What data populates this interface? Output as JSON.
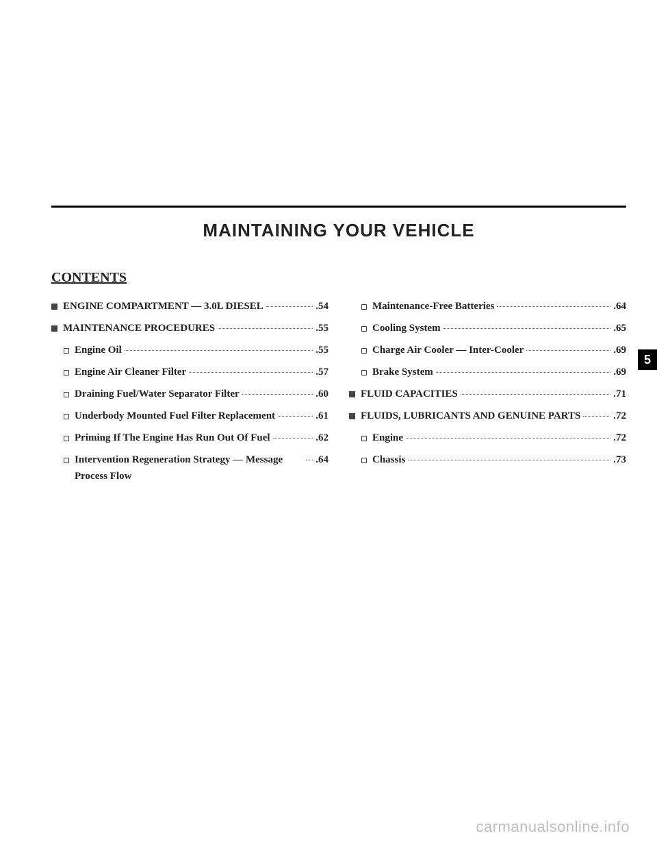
{
  "chapter_title": "MAINTAINING YOUR VEHICLE",
  "contents_heading": "CONTENTS",
  "section_number": "5",
  "watermark": "carmanualsonline.info",
  "toc": {
    "left": [
      {
        "level": 1,
        "label": "ENGINE COMPARTMENT — 3.0L DIESEL",
        "page": ".54"
      },
      {
        "level": 1,
        "label": "MAINTENANCE PROCEDURES",
        "page": ".55"
      },
      {
        "level": 2,
        "label": "Engine Oil",
        "page": ".55"
      },
      {
        "level": 2,
        "label": "Engine Air Cleaner Filter",
        "page": ".57"
      },
      {
        "level": 2,
        "label": "Draining Fuel/Water Separator Filter",
        "page": ".60"
      },
      {
        "level": 2,
        "label": "Underbody Mounted Fuel Filter Replacement",
        "page": ".61"
      },
      {
        "level": 2,
        "label": "Priming If The Engine Has Run Out Of Fuel",
        "page": ".62"
      },
      {
        "level": 2,
        "label": "Intervention Regeneration Strategy — Message Process Flow",
        "page": ".64"
      }
    ],
    "right": [
      {
        "level": 2,
        "label": "Maintenance-Free Batteries",
        "page": ".64"
      },
      {
        "level": 2,
        "label": "Cooling System",
        "page": ".65"
      },
      {
        "level": 2,
        "label": "Charge Air Cooler — Inter-Cooler",
        "page": ".69"
      },
      {
        "level": 2,
        "label": "Brake System",
        "page": ".69"
      },
      {
        "level": 1,
        "label": "FLUID CAPACITIES",
        "page": ".71"
      },
      {
        "level": 1,
        "label": "FLUIDS, LUBRICANTS AND GENUINE PARTS",
        "page": ".72"
      },
      {
        "level": 2,
        "label": "Engine",
        "page": ".72"
      },
      {
        "level": 2,
        "label": "Chassis",
        "page": ".73"
      }
    ]
  }
}
